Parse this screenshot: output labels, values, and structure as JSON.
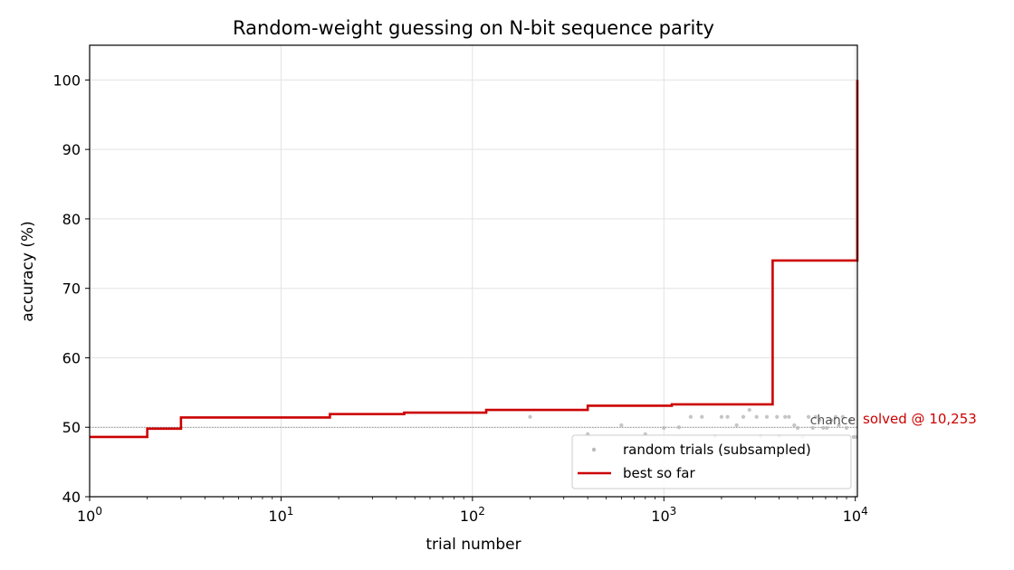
{
  "chart_data": {
    "type": "line",
    "title": "Random-weight guessing on N-bit sequence parity",
    "xlabel": "trial number",
    "ylabel": "accuracy (%)",
    "x_scale": "log",
    "xlim": [
      1,
      10253
    ],
    "ylim": [
      40,
      105
    ],
    "x_ticks": [
      {
        "value": 1,
        "base": "10",
        "exp": "0"
      },
      {
        "value": 10,
        "base": "10",
        "exp": "1"
      },
      {
        "value": 100,
        "base": "10",
        "exp": "2"
      },
      {
        "value": 1000,
        "base": "10",
        "exp": "3"
      },
      {
        "value": 10000,
        "base": "10",
        "exp": "4"
      }
    ],
    "y_ticks": [
      40,
      50,
      60,
      70,
      80,
      90,
      100
    ],
    "grid": true,
    "legend": {
      "position": "lower-right",
      "entries": [
        "random trials (subsampled)",
        "best so far"
      ]
    },
    "series": [
      {
        "name": "random trials (subsampled)",
        "kind": "scatter",
        "color": "#bbbbbb",
        "points": [
          [
            200,
            51.5
          ],
          [
            400,
            49.0
          ],
          [
            600,
            50.3
          ],
          [
            800,
            49.0
          ],
          [
            1000,
            49.9
          ],
          [
            1200,
            50.0
          ],
          [
            1380,
            51.5
          ],
          [
            1580,
            51.5
          ],
          [
            1850,
            48.7
          ],
          [
            2000,
            51.5
          ],
          [
            2150,
            51.5
          ],
          [
            2400,
            50.3
          ],
          [
            2600,
            51.5
          ],
          [
            2800,
            52.5
          ],
          [
            3050,
            51.5
          ],
          [
            3200,
            48.7
          ],
          [
            3450,
            51.5
          ],
          [
            3900,
            51.5
          ],
          [
            4000,
            48.7
          ],
          [
            4300,
            51.5
          ],
          [
            4500,
            51.5
          ],
          [
            4800,
            50.3
          ],
          [
            5000,
            49.9
          ],
          [
            5300,
            48.6
          ],
          [
            5700,
            51.5
          ],
          [
            6000,
            49.9
          ],
          [
            6200,
            51.5
          ],
          [
            6500,
            51.0
          ],
          [
            6800,
            49.9
          ],
          [
            7100,
            49.9
          ],
          [
            7500,
            51.0
          ],
          [
            7900,
            51.5
          ],
          [
            8200,
            50.3
          ],
          [
            8600,
            51.5
          ],
          [
            9000,
            49.9
          ],
          [
            9400,
            51.0
          ],
          [
            9800,
            48.6
          ],
          [
            10100,
            48.6
          ]
        ]
      },
      {
        "name": "best so far",
        "kind": "step",
        "color": "#cc0000",
        "points": [
          [
            1,
            48.6
          ],
          [
            2,
            48.6
          ],
          [
            2,
            49.8
          ],
          [
            3,
            49.8
          ],
          [
            3,
            51.4
          ],
          [
            18,
            51.4
          ],
          [
            18,
            51.9
          ],
          [
            44,
            51.9
          ],
          [
            44,
            52.1
          ],
          [
            118,
            52.1
          ],
          [
            118,
            52.5
          ],
          [
            400,
            52.5
          ],
          [
            400,
            53.1
          ],
          [
            1100,
            53.1
          ],
          [
            1100,
            53.3
          ],
          [
            3700,
            53.3
          ],
          [
            3700,
            74.0
          ],
          [
            10253,
            74.0
          ],
          [
            10253,
            100.0
          ]
        ]
      }
    ],
    "reference_line": {
      "value": 50,
      "label": "chance",
      "style": "dotted",
      "color": "#777777"
    },
    "annotation": {
      "text": "solved @ 10,253",
      "color": "#cc0000"
    }
  }
}
